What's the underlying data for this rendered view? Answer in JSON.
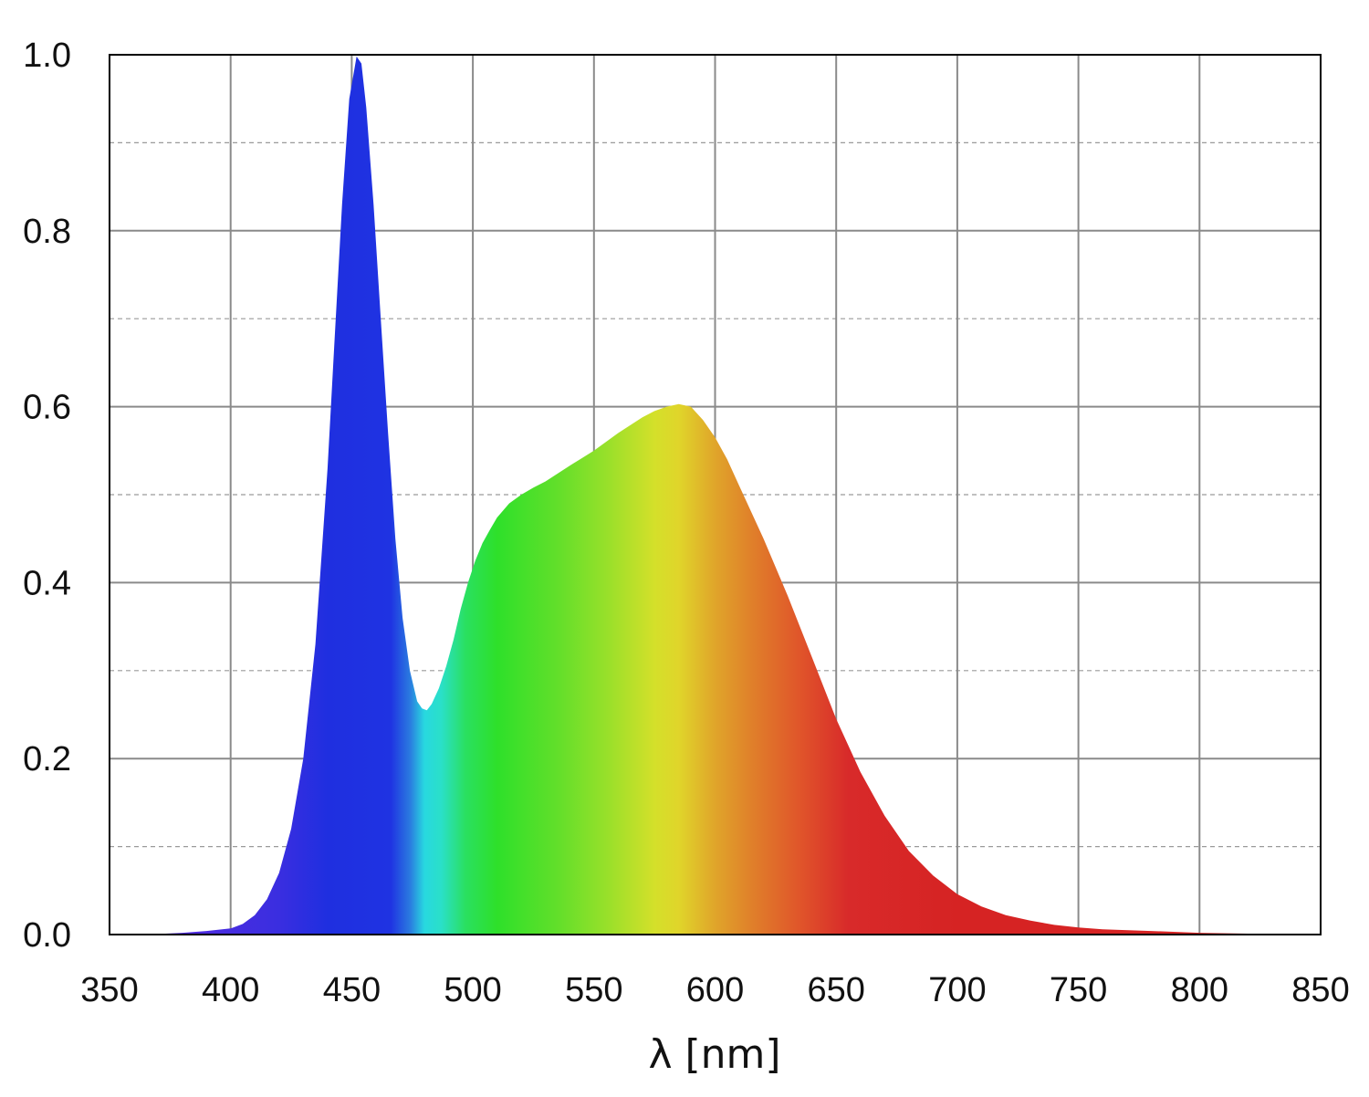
{
  "chart_data": {
    "type": "area",
    "title": "",
    "xlabel": "λ [nm]",
    "ylabel": "",
    "xlim": [
      350,
      850
    ],
    "ylim": [
      0,
      1.0
    ],
    "x_ticks": [
      "350",
      "400",
      "450",
      "500",
      "550",
      "600",
      "650",
      "700",
      "750",
      "800",
      "850"
    ],
    "y_ticks": [
      "0.0",
      "0.2",
      "0.4",
      "0.6",
      "0.8",
      "1.0"
    ],
    "grid": {
      "major": true,
      "minor_y_dashed": true
    },
    "fill": "wavelength-rainbow gradient",
    "series": [
      {
        "x": [
          365,
          380,
          390,
          400,
          405,
          410,
          415,
          420,
          425,
          430,
          435,
          440,
          443,
          446,
          449,
          452,
          454,
          456,
          459,
          462,
          465,
          468,
          471,
          474,
          477,
          479,
          481,
          483,
          486,
          489,
          492,
          495,
          498,
          501,
          504,
          507,
          510,
          515,
          520,
          525,
          530,
          540,
          550,
          560,
          570,
          575,
          580,
          585,
          590,
          595,
          600,
          605,
          610,
          620,
          630,
          640,
          650,
          660,
          670,
          680,
          690,
          700,
          710,
          720,
          730,
          740,
          750,
          760,
          780,
          800,
          820,
          840
        ],
        "y": [
          0.0,
          0.002,
          0.004,
          0.007,
          0.012,
          0.022,
          0.04,
          0.07,
          0.12,
          0.2,
          0.33,
          0.53,
          0.68,
          0.83,
          0.95,
          0.998,
          0.99,
          0.94,
          0.83,
          0.7,
          0.57,
          0.45,
          0.36,
          0.3,
          0.265,
          0.257,
          0.255,
          0.262,
          0.28,
          0.305,
          0.335,
          0.37,
          0.4,
          0.425,
          0.445,
          0.46,
          0.474,
          0.49,
          0.5,
          0.508,
          0.515,
          0.533,
          0.55,
          0.57,
          0.588,
          0.595,
          0.6,
          0.603,
          0.6,
          0.585,
          0.565,
          0.54,
          0.51,
          0.45,
          0.385,
          0.315,
          0.245,
          0.185,
          0.135,
          0.095,
          0.067,
          0.046,
          0.032,
          0.022,
          0.016,
          0.011,
          0.008,
          0.006,
          0.004,
          0.002,
          0.001,
          0.0
        ]
      }
    ]
  }
}
